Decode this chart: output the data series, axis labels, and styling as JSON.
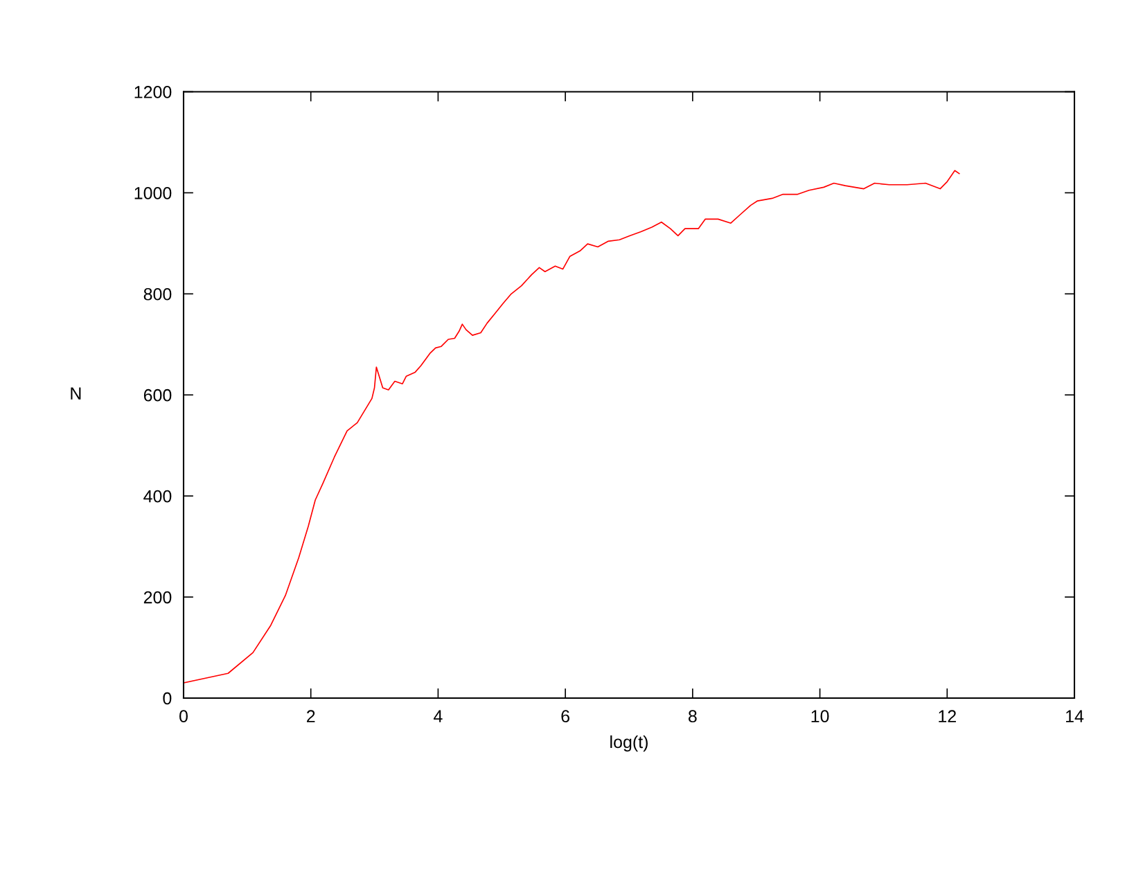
{
  "chart_data": {
    "type": "line",
    "xlabel": "log(t)",
    "ylabel": "N",
    "x": [
      0,
      0.7,
      1.09,
      1.37,
      1.6,
      1.81,
      1.96,
      2.07,
      2.19,
      2.37,
      2.57,
      2.73,
      2.96,
      3.0,
      3.03,
      3.13,
      3.22,
      3.32,
      3.44,
      3.5,
      3.64,
      3.73,
      3.87,
      3.96,
      4.05,
      4.16,
      4.26,
      4.33,
      4.38,
      4.44,
      4.54,
      4.67,
      4.77,
      4.9,
      5.02,
      5.15,
      5.31,
      5.47,
      5.59,
      5.68,
      5.84,
      5.96,
      6.07,
      6.23,
      6.35,
      6.51,
      6.67,
      6.85,
      7.01,
      7.19,
      7.36,
      7.51,
      7.65,
      7.77,
      7.88,
      8.09,
      8.2,
      8.4,
      8.6,
      8.74,
      8.91,
      9.02,
      9.25,
      9.42,
      9.65,
      9.83,
      10.06,
      10.22,
      10.4,
      10.69,
      10.86,
      11.09,
      11.37,
      11.66,
      11.89,
      12.0,
      12.12,
      12.19
    ],
    "series": [
      {
        "color": "#ff0000",
        "values": [
          30,
          49,
          90,
          144,
          203,
          278,
          340,
          392,
          425,
          477,
          529,
          545,
          593,
          614,
          655,
          614,
          610,
          627,
          622,
          637,
          645,
          658,
          682,
          693,
          696,
          710,
          712,
          726,
          740,
          729,
          718,
          723,
          742,
          762,
          781,
          800,
          816,
          838,
          852,
          844,
          855,
          849,
          874,
          885,
          899,
          893,
          904,
          907,
          915,
          923,
          932,
          942,
          929,
          915,
          929,
          929,
          948,
          948,
          940,
          956,
          975,
          984,
          989,
          997,
          997,
          1005,
          1011,
          1019,
          1014,
          1008,
          1019,
          1016,
          1016,
          1019,
          1008,
          1022,
          1044,
          1038
        ]
      }
    ],
    "xlim": [
      0,
      14
    ],
    "xticks": [
      0,
      2,
      4,
      6,
      8,
      10,
      12,
      14
    ],
    "ylim": [
      0,
      1200
    ],
    "yticks": [
      0,
      200,
      400,
      600,
      800,
      1000,
      1200
    ],
    "grid": false,
    "legend": false,
    "line_style": "solid",
    "marker": "none"
  }
}
